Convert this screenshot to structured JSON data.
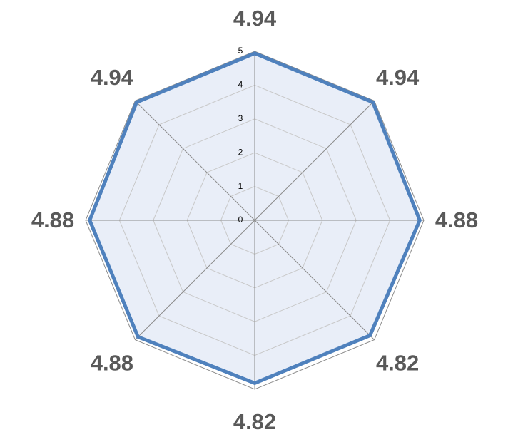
{
  "chart_data": {
    "type": "radar",
    "categories": [
      null,
      null,
      null,
      null,
      null,
      null,
      null,
      null
    ],
    "series": [
      {
        "color": "#4f81bd",
        "fill": "#e9eef8",
        "values": [
          4.94,
          4.94,
          4.88,
          4.82,
          4.82,
          4.88,
          4.88,
          4.94
        ]
      }
    ],
    "rlim": [
      0,
      5
    ],
    "rticks": [
      0,
      1,
      2,
      3,
      4,
      5
    ],
    "grid": true
  }
}
